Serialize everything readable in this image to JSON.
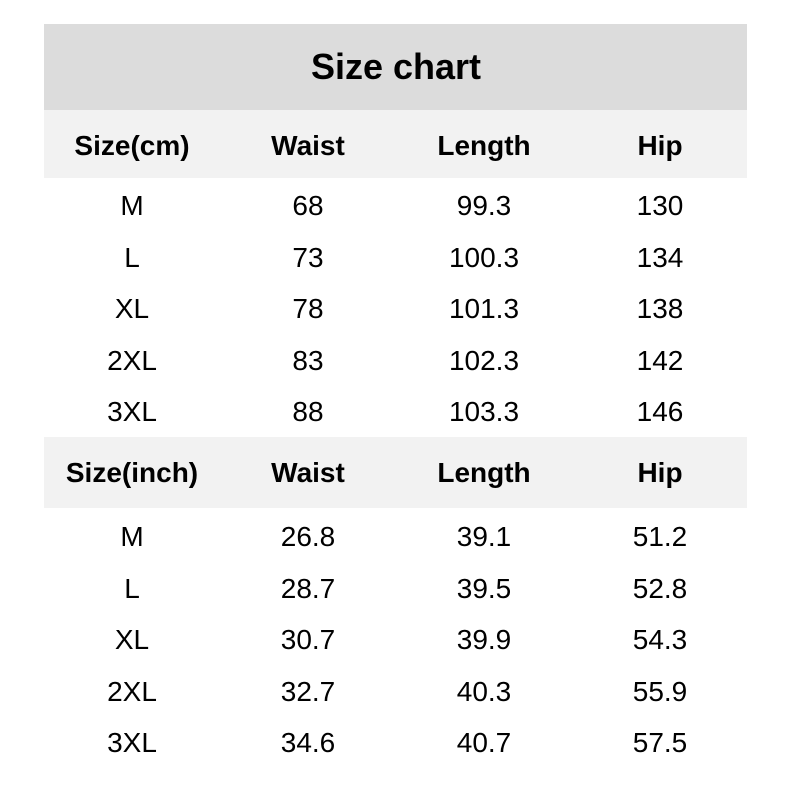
{
  "title": "Size chart",
  "tables": [
    {
      "header": [
        "Size(cm)",
        "Waist",
        "Length",
        "Hip"
      ],
      "rows": [
        [
          "M",
          "68",
          "99.3",
          "130"
        ],
        [
          "L",
          "73",
          "100.3",
          "134"
        ],
        [
          "XL",
          "78",
          "101.3",
          "138"
        ],
        [
          "2XL",
          "83",
          "102.3",
          "142"
        ],
        [
          "3XL",
          "88",
          "103.3",
          "146"
        ]
      ]
    },
    {
      "header": [
        "Size(inch)",
        "Waist",
        "Length",
        "Hip"
      ],
      "rows": [
        [
          "M",
          "26.8",
          "39.1",
          "51.2"
        ],
        [
          "L",
          "28.7",
          "39.5",
          "52.8"
        ],
        [
          "XL",
          "30.7",
          "39.9",
          "54.3"
        ],
        [
          "2XL",
          "32.7",
          "40.3",
          "55.9"
        ],
        [
          "3XL",
          "34.6",
          "40.7",
          "57.5"
        ]
      ]
    }
  ]
}
